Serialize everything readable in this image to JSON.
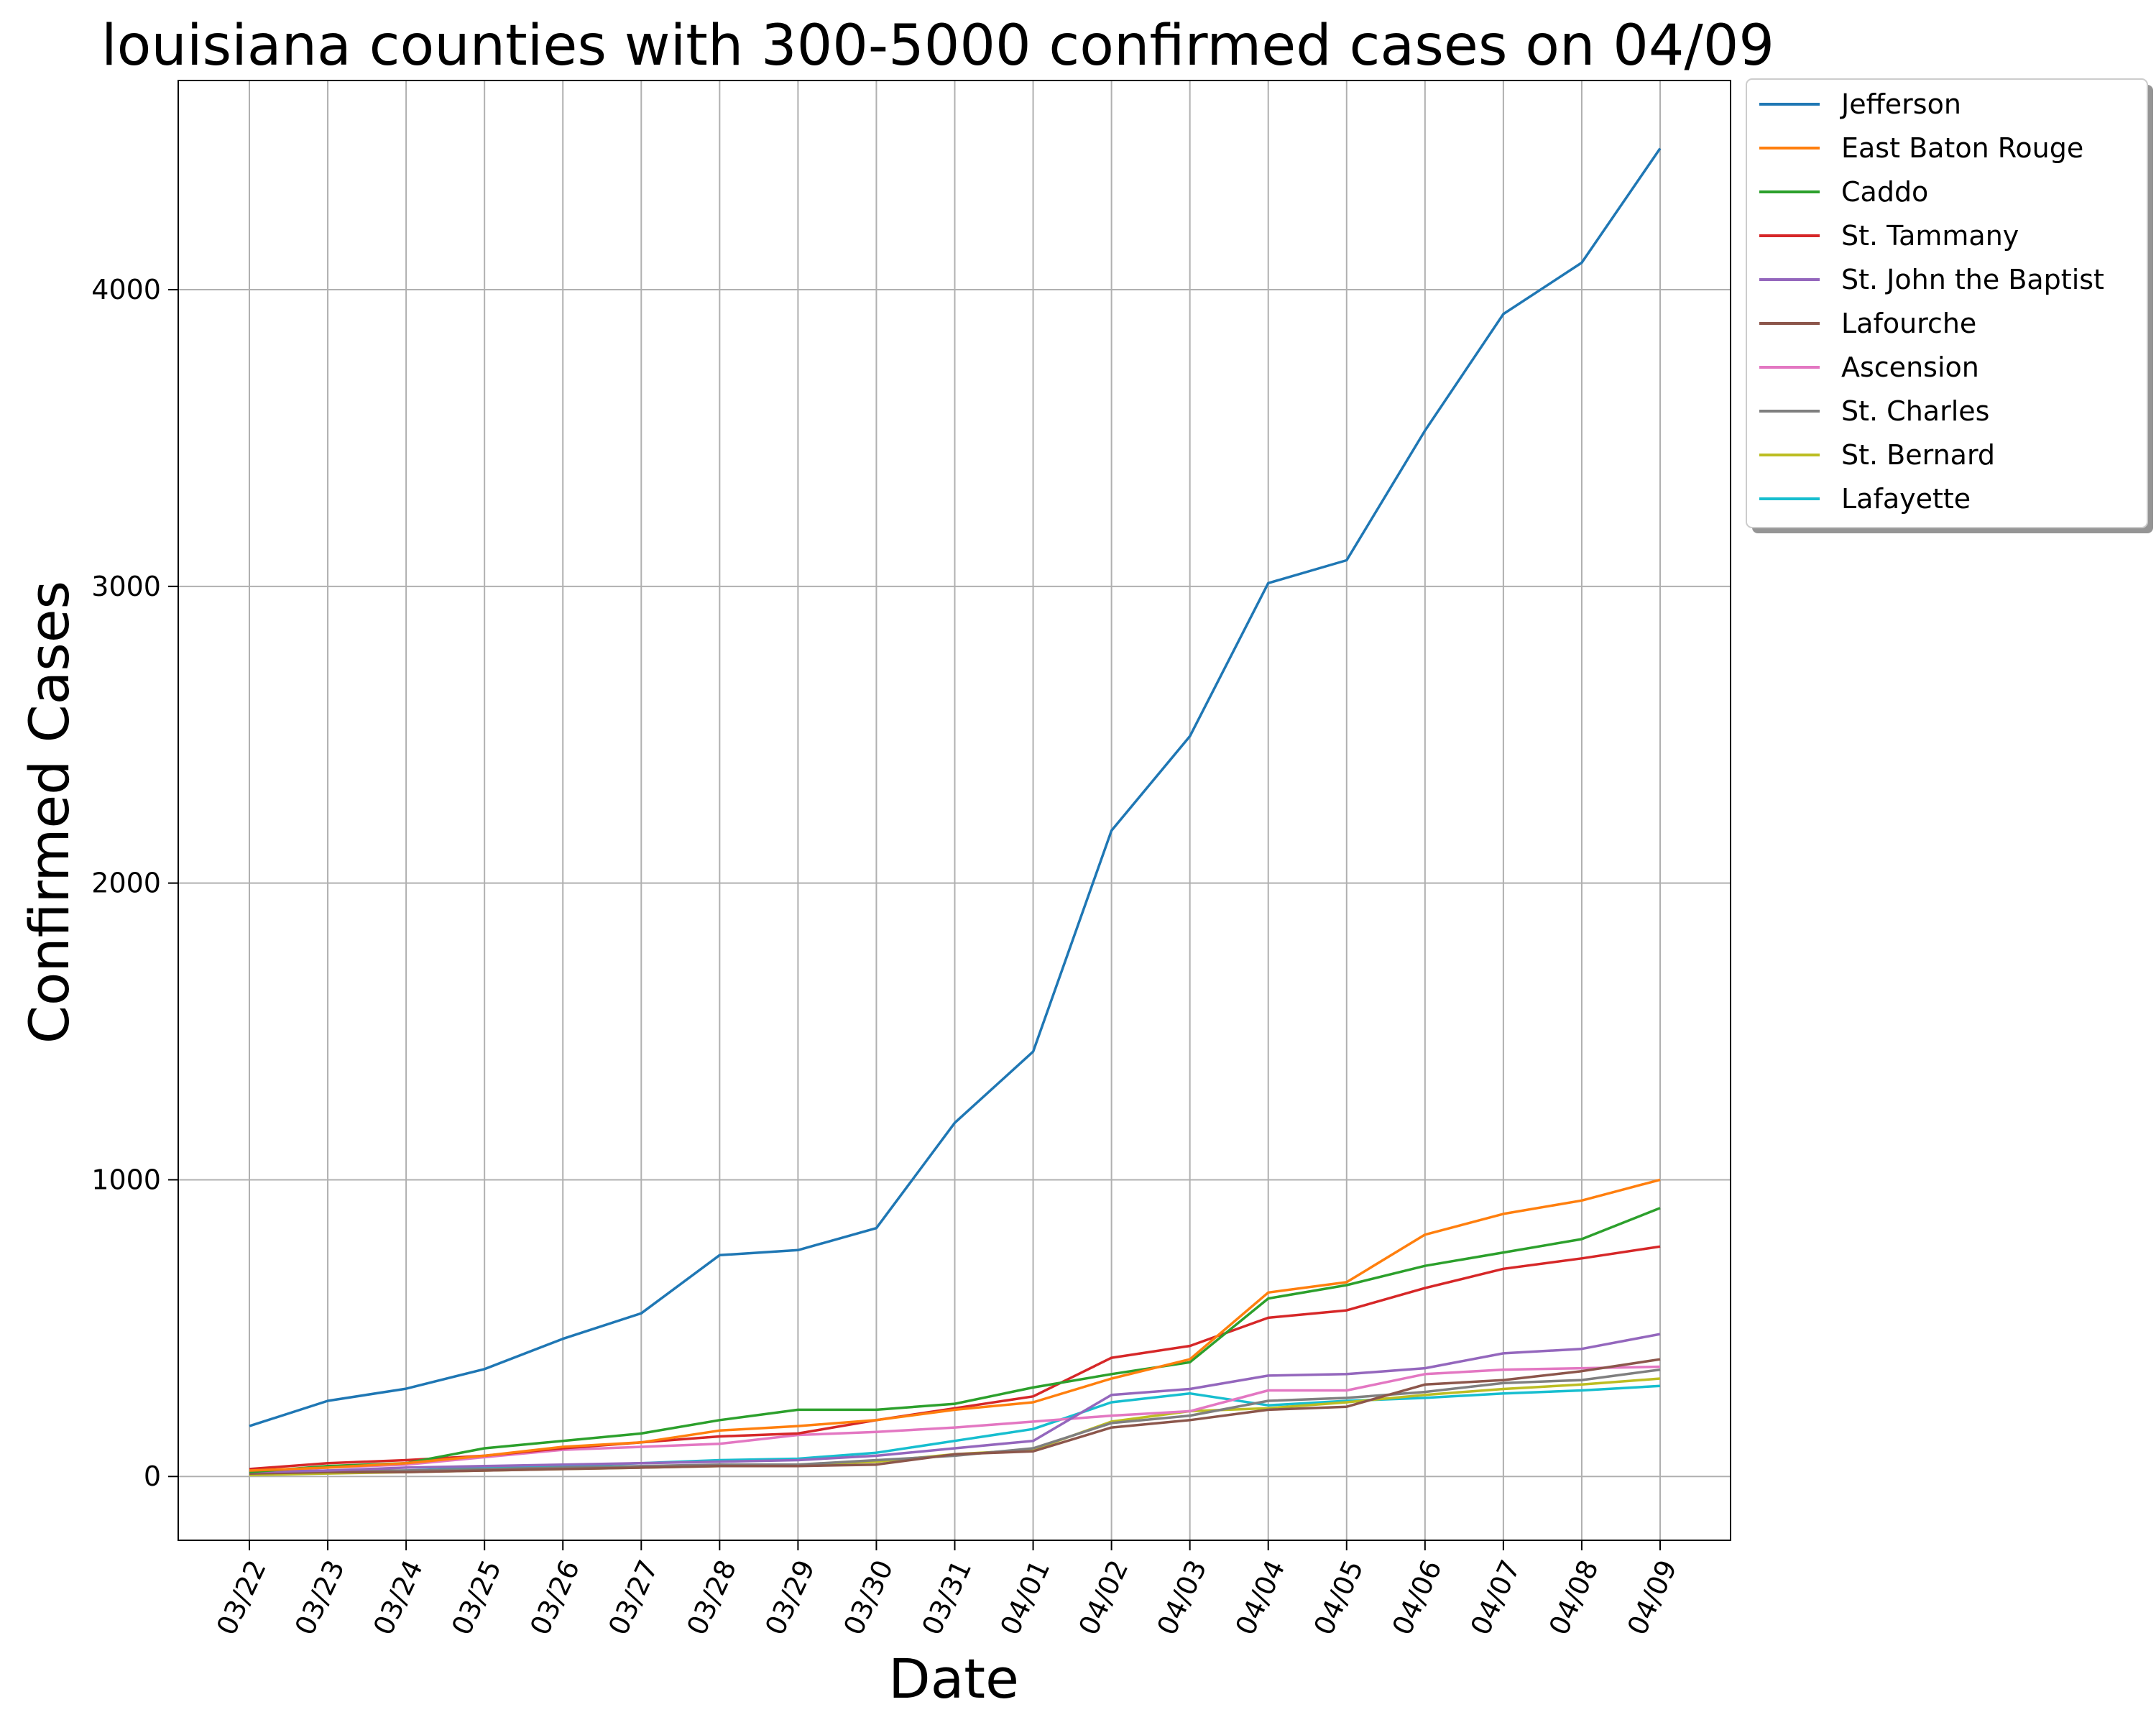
{
  "chart_data": {
    "type": "line",
    "title": "louisiana counties with 300-5000 confirmed cases on 04/09",
    "xlabel": "Date",
    "ylabel": "Confirmed Cases",
    "categories": [
      "03/22",
      "03/23",
      "03/24",
      "03/25",
      "03/26",
      "03/27",
      "03/28",
      "03/29",
      "03/30",
      "03/31",
      "04/01",
      "04/02",
      "04/03",
      "04/04",
      "04/05",
      "04/06",
      "04/07",
      "04/08",
      "04/09"
    ],
    "ylim": [
      -215,
      4705
    ],
    "yticks": [
      0,
      1000,
      2000,
      3000,
      4000
    ],
    "grid": true,
    "legend_position": "outside-top-right",
    "series": [
      {
        "name": "Jefferson",
        "color": "#1f77b4",
        "values": [
          170,
          255,
          296,
          362,
          464,
          550,
          746,
          763,
          837,
          1192,
          1432,
          2177,
          2495,
          3011,
          3088,
          3525,
          3918,
          4091,
          4476
        ]
      },
      {
        "name": "East Baton Rouge",
        "color": "#ff7f0e",
        "values": [
          20,
          30,
          45,
          70,
          100,
          115,
          155,
          170,
          190,
          225,
          250,
          330,
          395,
          620,
          655,
          815,
          885,
          930,
          1000
        ]
      },
      {
        "name": "Caddo",
        "color": "#2ca02c",
        "values": [
          15,
          35,
          45,
          95,
          120,
          145,
          190,
          225,
          225,
          245,
          300,
          345,
          385,
          600,
          645,
          710,
          755,
          800,
          905
        ]
      },
      {
        "name": "St. Tammany",
        "color": "#d62728",
        "values": [
          25,
          45,
          55,
          70,
          95,
          115,
          135,
          145,
          190,
          230,
          270,
          400,
          440,
          535,
          560,
          635,
          700,
          735,
          775
        ]
      },
      {
        "name": "St. John the Baptist",
        "color": "#9467bd",
        "values": [
          15,
          20,
          30,
          35,
          40,
          45,
          50,
          55,
          70,
          95,
          120,
          275,
          295,
          340,
          345,
          365,
          415,
          430,
          480
        ]
      },
      {
        "name": "Lafourche",
        "color": "#8c564b",
        "values": [
          10,
          15,
          15,
          20,
          25,
          30,
          35,
          35,
          40,
          75,
          85,
          165,
          190,
          225,
          235,
          310,
          325,
          355,
          395
        ]
      },
      {
        "name": "Ascension",
        "color": "#e377c2",
        "values": [
          15,
          30,
          40,
          65,
          90,
          100,
          110,
          140,
          150,
          165,
          185,
          205,
          220,
          290,
          290,
          345,
          360,
          365,
          370
        ]
      },
      {
        "name": "St. Charles",
        "color": "#7f7f7f",
        "values": [
          10,
          20,
          20,
          25,
          30,
          35,
          40,
          40,
          55,
          70,
          95,
          180,
          205,
          255,
          265,
          285,
          315,
          325,
          360
        ]
      },
      {
        "name": "St. Bernard",
        "color": "#bcbd22",
        "values": [
          5,
          10,
          15,
          20,
          25,
          30,
          35,
          40,
          50,
          75,
          90,
          185,
          220,
          230,
          250,
          275,
          295,
          310,
          330
        ]
      },
      {
        "name": "Lafayette",
        "color": "#17becf",
        "values": [
          10,
          15,
          20,
          30,
          35,
          45,
          55,
          60,
          80,
          120,
          160,
          250,
          280,
          240,
          255,
          265,
          280,
          290,
          305
        ]
      }
    ]
  }
}
